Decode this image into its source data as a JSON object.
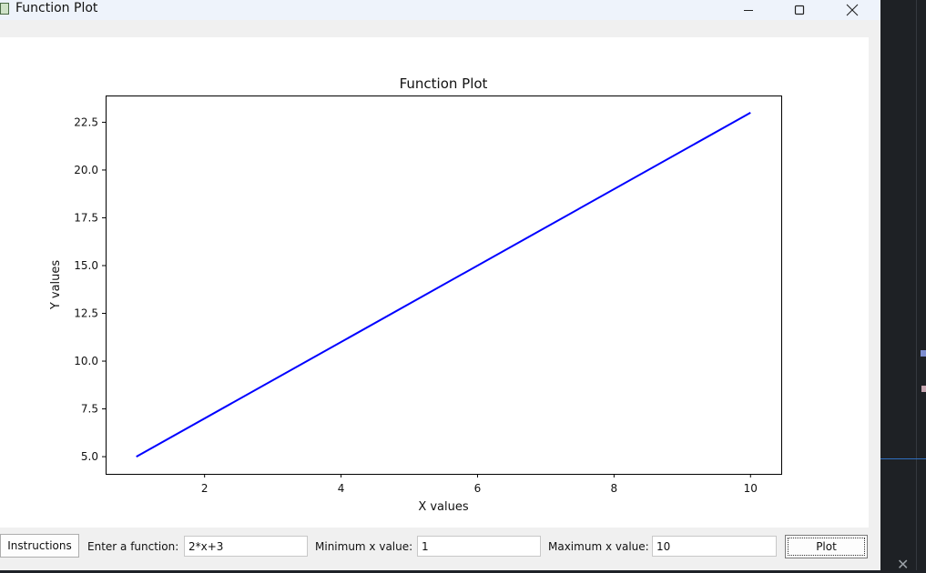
{
  "window": {
    "title": "Function Plot"
  },
  "chart_data": {
    "type": "line",
    "title": "Function Plot",
    "xlabel": "X values",
    "ylabel": "Y values",
    "function": "2*x+3",
    "x": [
      1,
      10
    ],
    "y": [
      5,
      23
    ],
    "xlim": [
      0.55,
      10.45
    ],
    "ylim": [
      4.1,
      23.9
    ],
    "xticks": [
      2,
      4,
      6,
      8,
      10
    ],
    "xtick_labels": [
      "2",
      "4",
      "6",
      "8",
      "10"
    ],
    "yticks": [
      5.0,
      7.5,
      10.0,
      12.5,
      15.0,
      17.5,
      20.0,
      22.5
    ],
    "ytick_labels": [
      "5.0",
      "7.5",
      "10.0",
      "12.5",
      "15.0",
      "17.5",
      "20.0",
      "22.5"
    ],
    "line_color": "#0000ff",
    "grid": false
  },
  "controls": {
    "instructions_label": "Instructions",
    "function_label": "Enter a function:",
    "function_value": "2*x+3",
    "min_label": "Minimum x value:",
    "min_value": "1",
    "max_label": "Maximum x value:",
    "max_value": "10",
    "plot_label": "Plot"
  }
}
